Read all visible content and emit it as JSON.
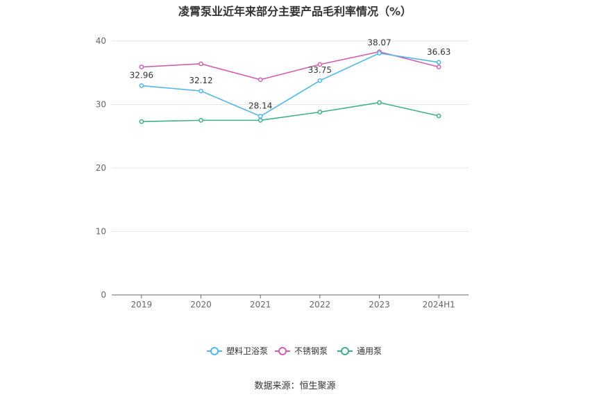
{
  "title": "凌霄泵业近年来部分主要产品毛利率情况（%）",
  "source": "数据来源：恒生聚源",
  "chart_data": {
    "type": "line",
    "title": "凌霄泵业近年来部分主要产品毛利率情况（%）",
    "categories": [
      "2019",
      "2020",
      "2021",
      "2022",
      "2023",
      "2024H1"
    ],
    "ylim": [
      0,
      40
    ],
    "yticks": [
      0,
      10,
      20,
      30,
      40
    ],
    "grid": true,
    "legend_position": "bottom",
    "series": [
      {
        "name": "塑料卫浴泵",
        "color": "#4db8ea",
        "values": [
          32.96,
          32.12,
          28.14,
          33.75,
          38.07,
          36.63
        ],
        "labels": [
          "32.96",
          "32.12",
          "28.14",
          "33.75",
          "38.07",
          "36.63"
        ]
      },
      {
        "name": "不锈钢泵",
        "color": "#d15fad",
        "values": [
          35.9,
          36.4,
          33.9,
          36.3,
          38.3,
          35.9
        ]
      },
      {
        "name": "通用泵",
        "color": "#3db08b",
        "values": [
          27.3,
          27.5,
          27.5,
          28.8,
          30.3,
          28.2
        ]
      }
    ]
  }
}
